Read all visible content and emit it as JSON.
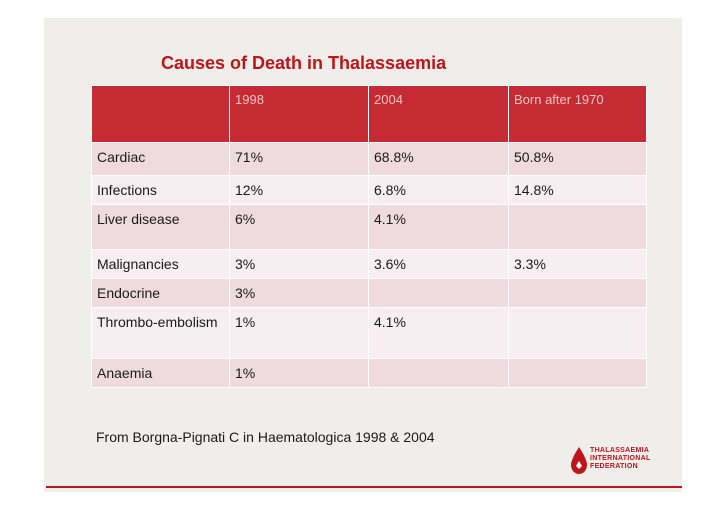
{
  "slide": {
    "title": "Causes of Death in Thalassaemia",
    "table": {
      "headers": [
        "",
        "1998",
        "2004",
        "Born after 1970"
      ],
      "rows": [
        [
          "Cardiac",
          "71%",
          "68.8%",
          "50.8%"
        ],
        [
          "Infections",
          "12%",
          "6.8%",
          "14.8%"
        ],
        [
          "Liver disease",
          "6%",
          "4.1%",
          ""
        ],
        [
          "Malignancies",
          "3%",
          "3.6%",
          "3.3%"
        ],
        [
          "Endocrine",
          "3%",
          "",
          ""
        ],
        [
          "Thrombo-embolism",
          "1%",
          "4.1%",
          ""
        ],
        [
          "Anaemia",
          "1%",
          "",
          ""
        ]
      ]
    },
    "source": "From Borgna-Pignati C in Haematologica 1998 & 2004",
    "logo": {
      "line1": "THALASSAEMIA",
      "line2": "INTERNATIONAL",
      "line3": "FEDERATION"
    }
  },
  "colors": {
    "accent": "#c0141b",
    "header_bg": "#c62b33",
    "header_text": "#f1c3c6",
    "row_light": "#f6eef0",
    "row_dark": "#efdbdd",
    "panel_bg": "#f0eeeb"
  }
}
